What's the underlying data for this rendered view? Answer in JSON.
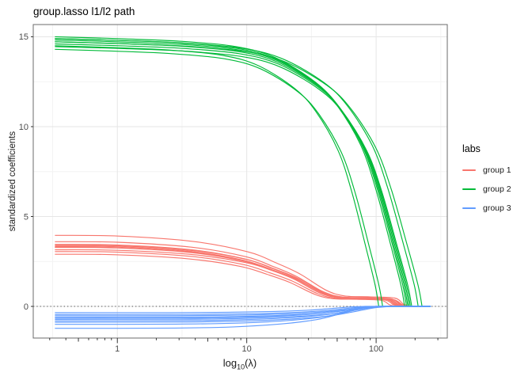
{
  "chart_data": {
    "type": "line",
    "title": "group.lasso l1/l2 path",
    "ylabel": "standardized coefficients",
    "xlabel": {
      "prefix": "log",
      "subscript": "10",
      "suffix": "(λ)"
    },
    "x_scale": "log10",
    "x_log_domain": [
      -0.65,
      2.55
    ],
    "y_domain": [
      -1.76,
      15.68
    ],
    "x_ticks": [
      {
        "label": "1",
        "log10": 0
      },
      {
        "label": "10",
        "log10": 1
      },
      {
        "label": "100",
        "log10": 2
      }
    ],
    "x_minor_gridlines_log10": [
      -0.5,
      0.5,
      1.5,
      2.5
    ],
    "y_ticks": [
      0,
      5,
      10,
      15
    ],
    "y_minor_gridlines": [
      2.5,
      7.5,
      12.5
    ],
    "log_tick_decades": [
      -1,
      0,
      1,
      2
    ],
    "hline": {
      "y": 0,
      "linetype": "dotted",
      "color": "#4d4d4d"
    },
    "series_start_log10": -0.48,
    "series_end_log10": 2.42,
    "grid": {
      "major_color": "#e6e6e6",
      "minor_color": "#f3f3f3",
      "panel_border": "#6b6b6b",
      "tick_color": "#333333",
      "tick_label_color": "#4d4d4d"
    },
    "legend": {
      "title": "labs",
      "position": "right"
    },
    "groups": [
      {
        "name": "group 1",
        "color": "#F8766D",
        "profile": [
          [
            0,
            1
          ],
          [
            0.177,
            0.991
          ],
          [
            0.389,
            0.914
          ],
          [
            0.541,
            0.769
          ],
          [
            0.62,
            0.615
          ],
          [
            0.686,
            0.462
          ],
          [
            0.76,
            0.231
          ],
          [
            0.813,
            0.148
          ],
          [
            0.883,
            0.135
          ],
          [
            0.954,
            0.117
          ],
          [
            0.979,
            0.031
          ],
          [
            1,
            0
          ]
        ],
        "curves": [
          {
            "start_value": 3.95,
            "zero_log10": 2.27
          },
          {
            "start_value": 3.6,
            "zero_log10": 2.24
          },
          {
            "start_value": 3.45,
            "zero_log10": 2.22
          },
          {
            "start_value": 3.4,
            "zero_log10": 2.25
          },
          {
            "start_value": 3.35,
            "zero_log10": 2.2
          },
          {
            "start_value": 3.3,
            "zero_log10": 2.23
          },
          {
            "start_value": 3.28,
            "zero_log10": 2.21
          },
          {
            "start_value": 3.15,
            "zero_log10": 2.26
          },
          {
            "start_value": 3.05,
            "zero_log10": 2.19
          },
          {
            "start_value": 2.9,
            "zero_log10": 2.16
          }
        ]
      },
      {
        "name": "group 2",
        "color": "#00BA38",
        "profile": [
          [
            0,
            1
          ],
          [
            0.18,
            0.993
          ],
          [
            0.36,
            0.983
          ],
          [
            0.518,
            0.963
          ],
          [
            0.629,
            0.923
          ],
          [
            0.741,
            0.835
          ],
          [
            0.806,
            0.747
          ],
          [
            0.874,
            0.599
          ],
          [
            0.917,
            0.438
          ],
          [
            0.96,
            0.229
          ],
          [
            0.989,
            0.081
          ],
          [
            1,
            0
          ]
        ],
        "curves": [
          {
            "start_value": 14.5,
            "zero_log10": 2.02
          },
          {
            "start_value": 14.3,
            "zero_log10": 2.05
          },
          {
            "start_value": 15.0,
            "zero_log10": 2.22
          },
          {
            "start_value": 14.9,
            "zero_log10": 2.235
          },
          {
            "start_value": 14.82,
            "zero_log10": 2.245
          },
          {
            "start_value": 14.72,
            "zero_log10": 2.255
          },
          {
            "start_value": 14.6,
            "zero_log10": 2.265
          },
          {
            "start_value": 14.45,
            "zero_log10": 2.275
          },
          {
            "start_value": 14.9,
            "zero_log10": 2.325
          },
          {
            "start_value": 14.72,
            "zero_log10": 2.355
          }
        ]
      },
      {
        "name": "group 3",
        "color": "#619CFF",
        "profile": [
          [
            0,
            1
          ],
          [
            0.37,
            0.987
          ],
          [
            0.556,
            0.933
          ],
          [
            0.704,
            0.8
          ],
          [
            0.815,
            0.6
          ],
          [
            0.889,
            0.333
          ],
          [
            0.944,
            0.107
          ],
          [
            0.981,
            0.027
          ],
          [
            1,
            0
          ]
        ],
        "curves": [
          {
            "start_value": -0.35,
            "zero_log10": 1.92
          },
          {
            "start_value": -0.45,
            "zero_log10": 2.0
          },
          {
            "start_value": -0.52,
            "zero_log10": 2.05
          },
          {
            "start_value": -0.6,
            "zero_log10": 2.08
          },
          {
            "start_value": -0.66,
            "zero_log10": 2.02
          },
          {
            "start_value": -0.72,
            "zero_log10": 2.1
          },
          {
            "start_value": -0.8,
            "zero_log10": 2.06
          },
          {
            "start_value": -0.88,
            "zero_log10": 2.12
          },
          {
            "start_value": -1.0,
            "zero_log10": 2.04
          },
          {
            "start_value": -1.22,
            "zero_log10": 2.0
          }
        ]
      }
    ]
  }
}
